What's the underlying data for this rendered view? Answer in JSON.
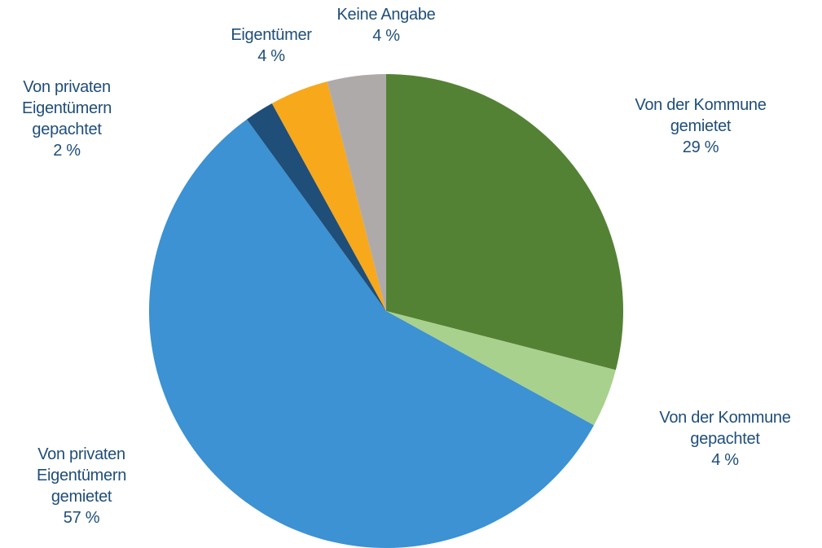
{
  "chart_data": {
    "type": "pie",
    "categories": [
      "Von der Kommune gemietet",
      "Von der Kommune gepachtet",
      "Von privaten Eigentümern gemietet",
      "Von privaten Eigentümern gepachtet",
      "Eigentümer",
      "Keine Angabe"
    ],
    "values": [
      29,
      4,
      57,
      2,
      4,
      4
    ],
    "value_labels": [
      "29 %",
      "4 %",
      "57 %",
      "2 %",
      "4 %",
      "4 %"
    ],
    "colors": [
      "#548235",
      "#a9d18e",
      "#3c92d2",
      "#1f4e79",
      "#f7a81b",
      "#aeaaaa"
    ]
  }
}
